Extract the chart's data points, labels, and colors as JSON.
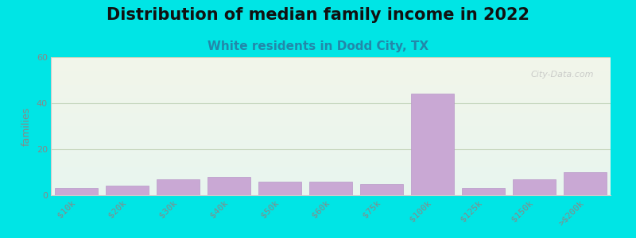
{
  "title": "Distribution of median family income in 2022",
  "subtitle": "White residents in Dodd City, TX",
  "categories": [
    "$10k",
    "$20k",
    "$30k",
    "$40k",
    "$50k",
    "$60k",
    "$75k",
    "$100k",
    "$125k",
    "$150k",
    ">$200k"
  ],
  "values": [
    3,
    4,
    7,
    8,
    6,
    6,
    5,
    44,
    3,
    7,
    10
  ],
  "bar_color": "#c9a8d4",
  "bar_edge_color": "#b898c8",
  "background_color": "#00e5e5",
  "plot_bg_gradient_top": "#f2f6ea",
  "plot_bg_gradient_bottom": "#e8f5ef",
  "ylabel": "families",
  "ylim": [
    0,
    60
  ],
  "yticks": [
    0,
    20,
    40,
    60
  ],
  "grid_color": "#c8d8c0",
  "title_fontsize": 15,
  "subtitle_fontsize": 11,
  "subtitle_color": "#2288aa",
  "watermark": "City-Data.com"
}
